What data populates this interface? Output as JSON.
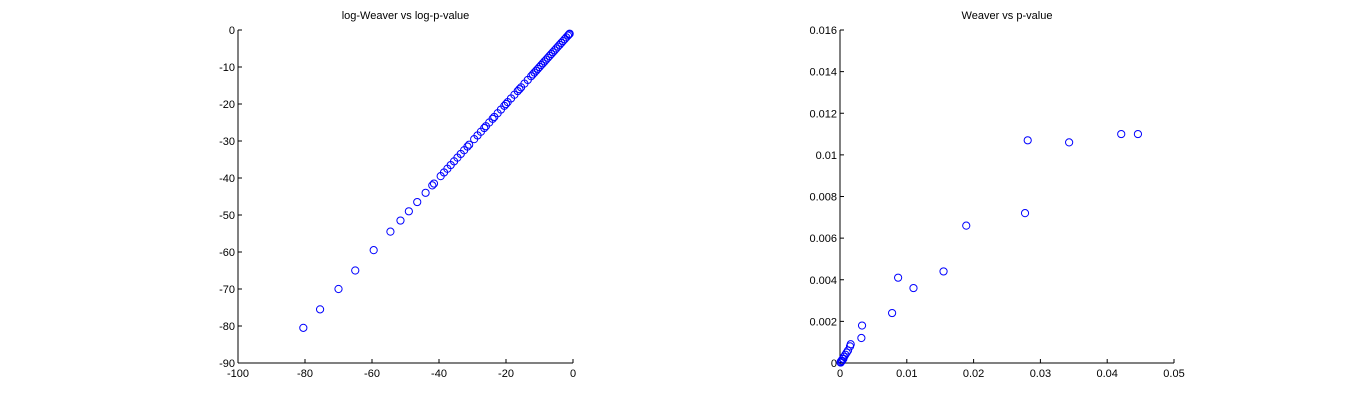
{
  "chart_data": [
    {
      "type": "scatter",
      "title": "log-Weaver vs log-p-value",
      "xlabel": "",
      "ylabel": "",
      "xlim": [
        -100,
        0
      ],
      "ylim": [
        -90,
        0
      ],
      "xticks": [
        -100,
        -80,
        -60,
        -40,
        -20,
        0
      ],
      "yticks": [
        0,
        -10,
        -20,
        -30,
        -40,
        -50,
        -60,
        -70,
        -80,
        -90
      ],
      "grid": false,
      "marker_color": "#0000ff",
      "series": [
        {
          "x": [
            -80.5,
            -75.5,
            -70,
            -65,
            -59.5,
            -54.5,
            -51.5,
            -49,
            -46.5,
            -44,
            -42,
            -41.5,
            -39.5,
            -38.5,
            -37.5,
            -36.5,
            -35.5,
            -34.5,
            -33.5,
            -32.5,
            -31.5,
            -31,
            -29.5,
            -28.5,
            -27.5,
            -26.5,
            -26,
            -25,
            -24,
            -23.5,
            -22.5,
            -21.5,
            -20.5,
            -20,
            -19.5,
            -18.5,
            -17.5,
            -16.5,
            -16,
            -15.5,
            -14.5,
            -13.5,
            -12.5,
            -12,
            -11.5,
            -11,
            -10.5,
            -10,
            -9.5,
            -9,
            -8.5,
            -8,
            -7.5,
            -7,
            -6.5,
            -6,
            -5.5,
            -5,
            -4.5,
            -4,
            -3.5,
            -3,
            -2.5,
            -2,
            -1.5,
            -1.2,
            -1
          ],
          "y": [
            -80.5,
            -75.5,
            -70,
            -65,
            -59.5,
            -54.5,
            -51.5,
            -49,
            -46.5,
            -44,
            -42,
            -41.5,
            -39.5,
            -38.5,
            -37.5,
            -36.5,
            -35.5,
            -34.5,
            -33.5,
            -32.5,
            -31.5,
            -31,
            -29.5,
            -28.5,
            -27.5,
            -26.5,
            -26,
            -25,
            -24,
            -23.5,
            -22.5,
            -21.5,
            -20.5,
            -20,
            -19.5,
            -18.5,
            -17.5,
            -16.5,
            -16,
            -15.5,
            -14.5,
            -13.5,
            -12.5,
            -12,
            -11.5,
            -11,
            -10.5,
            -10,
            -9.5,
            -9,
            -8.5,
            -8,
            -7.5,
            -7,
            -6.5,
            -6,
            -5.5,
            -5,
            -4.5,
            -4,
            -3.5,
            -3,
            -2.5,
            -2,
            -1.5,
            -1.2,
            -1
          ]
        }
      ]
    },
    {
      "type": "scatter",
      "title": "Weaver vs p-value",
      "xlabel": "",
      "ylabel": "",
      "xlim": [
        0,
        0.05
      ],
      "ylim": [
        0,
        0.016
      ],
      "xticks": [
        0,
        0.01,
        0.02,
        0.03,
        0.04,
        0.05
      ],
      "xtick_labels": [
        "0",
        "0.01",
        "0.02",
        "0.03",
        "0.04",
        "0.05"
      ],
      "yticks": [
        0,
        0.002,
        0.004,
        0.006,
        0.008,
        0.01,
        0.012,
        0.014,
        0.016
      ],
      "ytick_labels": [
        "0",
        "0.002",
        "0.004",
        "0.006",
        "0.008",
        "0.01",
        "0.012",
        "0.014",
        "0.016"
      ],
      "grid": false,
      "marker_color": "#0000ff",
      "series": [
        {
          "x": [
            0.0421,
            0.0446,
            0.0281,
            0.0343,
            0.0277,
            0.0189,
            0.0155,
            0.011,
            0.0087,
            0.0078,
            0.0033,
            0.0032,
            0.0016,
            0.0015,
            0.0012,
            0.001,
            0.0008,
            0.0006,
            0.0005,
            0.0004,
            0.0003,
            0.0002,
            0.0001,
            0.0001
          ],
          "y": [
            0.011,
            0.011,
            0.0107,
            0.0106,
            0.0072,
            0.0066,
            0.0044,
            0.0036,
            0.0041,
            0.0024,
            0.0018,
            0.0012,
            0.0009,
            0.0008,
            0.0006,
            0.0005,
            0.0004,
            0.0003,
            0.0002,
            0.0002,
            0.0001,
            0.0001,
            5e-05,
            2e-05
          ]
        }
      ]
    }
  ]
}
